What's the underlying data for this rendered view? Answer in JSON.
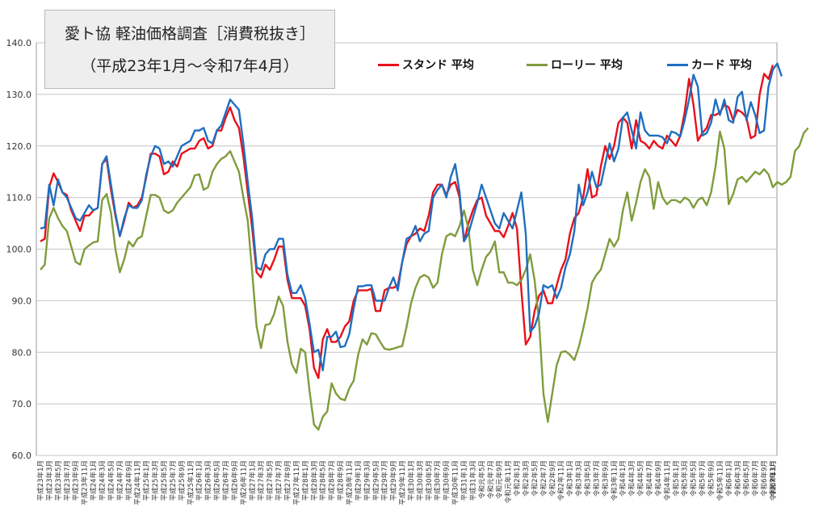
{
  "title": {
    "line1": "愛ト協 軽油価格調査［消費税抜き］",
    "line2": "（平成23年1月～令和7年4月）"
  },
  "legend": [
    {
      "label": "スタンド 平均",
      "color": "#e8101a"
    },
    {
      "label": "ローリー 平均",
      "color": "#7f9c3c"
    },
    {
      "label": "カード 平均",
      "color": "#1f6fc0"
    }
  ],
  "chart_data": {
    "type": "line",
    "ylim": [
      60,
      140
    ],
    "yticks": [
      "60.0",
      "70.0",
      "80.0",
      "90.0",
      "100.0",
      "110.0",
      "120.0",
      "130.0",
      "140.0"
    ],
    "xtick_labels": [
      "平成23年1月",
      "平成23年3月",
      "平成23年5月",
      "平成23年7月",
      "平成23年9月",
      "平成23年11月",
      "平成24年1月",
      "平成24年3月",
      "平成24年5月",
      "平成24年7月",
      "平成24年9月",
      "平成24年11月",
      "平成25年1月",
      "平成25年3月",
      "平成25年5月",
      "平成25年7月",
      "平成25年9月",
      "平成25年11月",
      "平成26年1月",
      "平成26年3月",
      "平成26年5月",
      "平成26年7月",
      "平成26年9月",
      "平成26年11月",
      "平成27年1月",
      "平成27年3月",
      "平成27年5月",
      "平成27年7月",
      "平成27年9月",
      "平成27年11月",
      "平成28年1月",
      "平成28年3月",
      "平成28年5月",
      "平成28年7月",
      "平成28年9月",
      "平成28年11月",
      "平成29年1月",
      "平成29年3月",
      "平成29年5月",
      "平成29年7月",
      "平成29年9月",
      "平成29年11月",
      "平成30年1月",
      "平成30年3月",
      "平成30年5月",
      "平成30年7月",
      "平成30年9月",
      "平成30年11月",
      "平成31年1月",
      "平成31年3月",
      "令和元年5月",
      "令和元年7月",
      "令和元年9月",
      "令和元年11月",
      "令和2年1月",
      "令和2年3月",
      "令和2年5月",
      "令和2年7月",
      "令和2年9月",
      "令和2年11月",
      "令和3年1月",
      "令和3年3月",
      "令和3年5月",
      "令和3年7月",
      "令和3年9月",
      "令和3年11月",
      "令和4年1月",
      "令和4年3月",
      "令和4年5月",
      "令和4年7月",
      "令和4年9月",
      "令和4年11月",
      "令和5年1月",
      "令和5年3月",
      "令和5年5月",
      "令和5年7月",
      "令和5年9月",
      "令和5年11月",
      "令和6年1月",
      "令和6年3月",
      "令和6年5月",
      "令和6年7月",
      "令和6年9月",
      "令和6年11月",
      "令和7年1月",
      "令和7年3月"
    ],
    "series": [
      {
        "name": "スタンド 平均",
        "color": "#e8101a",
        "values": [
          101.5,
          102,
          112,
          114.7,
          113,
          111,
          110.5,
          107.5,
          105.5,
          103.5,
          106.5,
          106.5,
          107.5,
          108,
          116.5,
          117.5,
          111.5,
          106.5,
          102.5,
          105.5,
          109,
          108,
          108.5,
          110,
          114,
          118.5,
          118.5,
          118,
          114.5,
          115,
          117,
          116,
          118.5,
          119,
          119.5,
          119.5,
          121,
          121.5,
          119.5,
          120,
          123,
          123,
          125.5,
          127.5,
          125,
          123.5,
          118,
          111,
          104,
          95.5,
          94.5,
          97,
          96,
          98,
          100.5,
          100.5,
          94,
          90.5,
          90.5,
          90.5,
          89,
          84.5,
          77,
          75,
          82.5,
          84.5,
          82,
          82,
          83,
          85,
          86,
          90,
          92,
          92,
          92,
          92.3,
          88,
          88,
          92,
          92.5,
          92.5,
          93,
          97.5,
          101,
          102.5,
          103,
          104,
          103.5,
          106.5,
          111,
          112.5,
          112.5,
          110.5,
          112.5,
          113,
          110,
          101.5,
          105,
          107.5,
          109.5,
          110,
          106.5,
          105,
          103.5,
          103.5,
          102.3,
          104.5,
          107,
          104,
          92,
          81.5,
          83,
          88,
          91,
          92,
          89.5,
          89.5,
          93,
          96,
          98,
          103,
          106,
          107,
          110,
          115.5,
          110,
          110.5,
          116,
          120,
          117.5,
          120,
          124.5,
          125.5,
          124.5,
          119.5,
          125,
          121,
          120.5,
          119.5,
          121,
          120,
          119.5,
          122,
          121,
          120,
          122,
          126.5,
          133,
          128,
          121,
          122.5,
          123.5,
          126,
          126,
          126.5,
          128,
          127.5,
          125,
          127,
          126.5,
          125.5,
          121.5,
          122,
          130,
          134,
          133,
          135.7
        ],
        "interp": "linear"
      },
      {
        "name": "ローリー 平均",
        "color": "#7f9c3c",
        "values": [
          96,
          97,
          106,
          108,
          106,
          104.5,
          103.5,
          100.5,
          97.5,
          97,
          100,
          100.7,
          101.3,
          101.5,
          109.5,
          110.7,
          107,
          100,
          95.5,
          98,
          101.5,
          100.5,
          102,
          102.5,
          106.5,
          110.5,
          110.5,
          110,
          107.5,
          107,
          107.5,
          109,
          110,
          111,
          112,
          114.3,
          114.5,
          111.5,
          112,
          115,
          116.5,
          117.5,
          118,
          119,
          117,
          115,
          110,
          105.5,
          95.5,
          85,
          80.8,
          85.3,
          85.5,
          87.5,
          90.8,
          89,
          82,
          77.7,
          76,
          80.7,
          80,
          72.5,
          66,
          65,
          67.5,
          68.5,
          74,
          72,
          71,
          70.7,
          73,
          74.5,
          79.5,
          82.5,
          81.5,
          83.7,
          83.5,
          82,
          80.7,
          80.5,
          80.7,
          81,
          81.2,
          85,
          89.5,
          92.5,
          94.5,
          95,
          94.5,
          92.5,
          93.5,
          99,
          102.5,
          103,
          102.5,
          104.5,
          107.5,
          104,
          96,
          93,
          96,
          98.5,
          99.5,
          101.5,
          95.5,
          95.5,
          93.5,
          93.5,
          93,
          94,
          96,
          99,
          94,
          86,
          72,
          66.5,
          72,
          77.5,
          80,
          80.2,
          79.5,
          78.5,
          81,
          84.5,
          88.5,
          93.5,
          95,
          96,
          99,
          102,
          100.5,
          102,
          107.5,
          111,
          105.5,
          109,
          113,
          115.5,
          114,
          107.8,
          113,
          110,
          108.7,
          109.5,
          109.5,
          109,
          110,
          109.5,
          108,
          109.5,
          110,
          108.5,
          111,
          116,
          122.8,
          119.5,
          108.7,
          110.7,
          113.5,
          114,
          113,
          114,
          115,
          114.5,
          115.5,
          114.5,
          112,
          113,
          112.5,
          113,
          114,
          119,
          120,
          122.5,
          123.5
        ],
        "interp": "linear"
      },
      {
        "name": "カード 平均",
        "color": "#1f6fc0",
        "values": [
          104,
          104.2,
          112.5,
          108.5,
          113.5,
          111,
          110,
          108,
          106,
          105.5,
          107,
          108.5,
          107.5,
          108,
          116.5,
          118,
          112.5,
          107,
          102.5,
          106,
          108.5,
          108,
          108,
          109.5,
          114.5,
          118,
          120,
          119.5,
          116.5,
          117,
          116,
          118,
          120,
          120.5,
          121,
          123,
          123,
          123.5,
          121,
          120.5,
          123,
          124,
          126.5,
          129,
          128,
          127,
          120.5,
          113,
          106,
          96.5,
          96,
          99,
          100,
          100,
          102,
          102,
          95,
          91.5,
          91.5,
          93,
          90.5,
          85.5,
          80,
          80.5,
          76.5,
          83,
          83,
          84,
          81,
          81.2,
          83.5,
          88.5,
          92.8,
          92.8,
          93,
          93,
          90,
          90,
          90,
          92.5,
          94.5,
          92,
          97.5,
          102,
          102.5,
          104.5,
          101.5,
          103,
          103.5,
          110,
          111.5,
          112.5,
          110,
          114,
          116.5,
          111,
          101.5,
          103,
          106,
          109,
          112.5,
          110,
          107.5,
          105,
          104,
          107,
          105.5,
          104,
          107.5,
          111,
          103,
          84,
          85,
          87.5,
          93,
          92.5,
          93,
          90.5,
          92.5,
          96.5,
          99,
          103.5,
          112.5,
          108.5,
          111,
          115,
          112,
          112.5,
          116.5,
          120.5,
          117,
          119.5,
          125.5,
          126.5,
          123,
          119.5,
          126.5,
          123,
          122,
          122,
          122,
          121.7,
          120.5,
          122.8,
          122.5,
          121.8,
          125,
          129,
          133.8,
          131.5,
          122,
          122.5,
          124.5,
          129,
          126,
          129,
          125,
          124.5,
          129.5,
          130.5,
          125,
          128.5,
          126,
          122.5,
          123,
          131.5,
          134.8,
          136,
          133.5
        ],
        "interp": "linear"
      }
    ]
  }
}
